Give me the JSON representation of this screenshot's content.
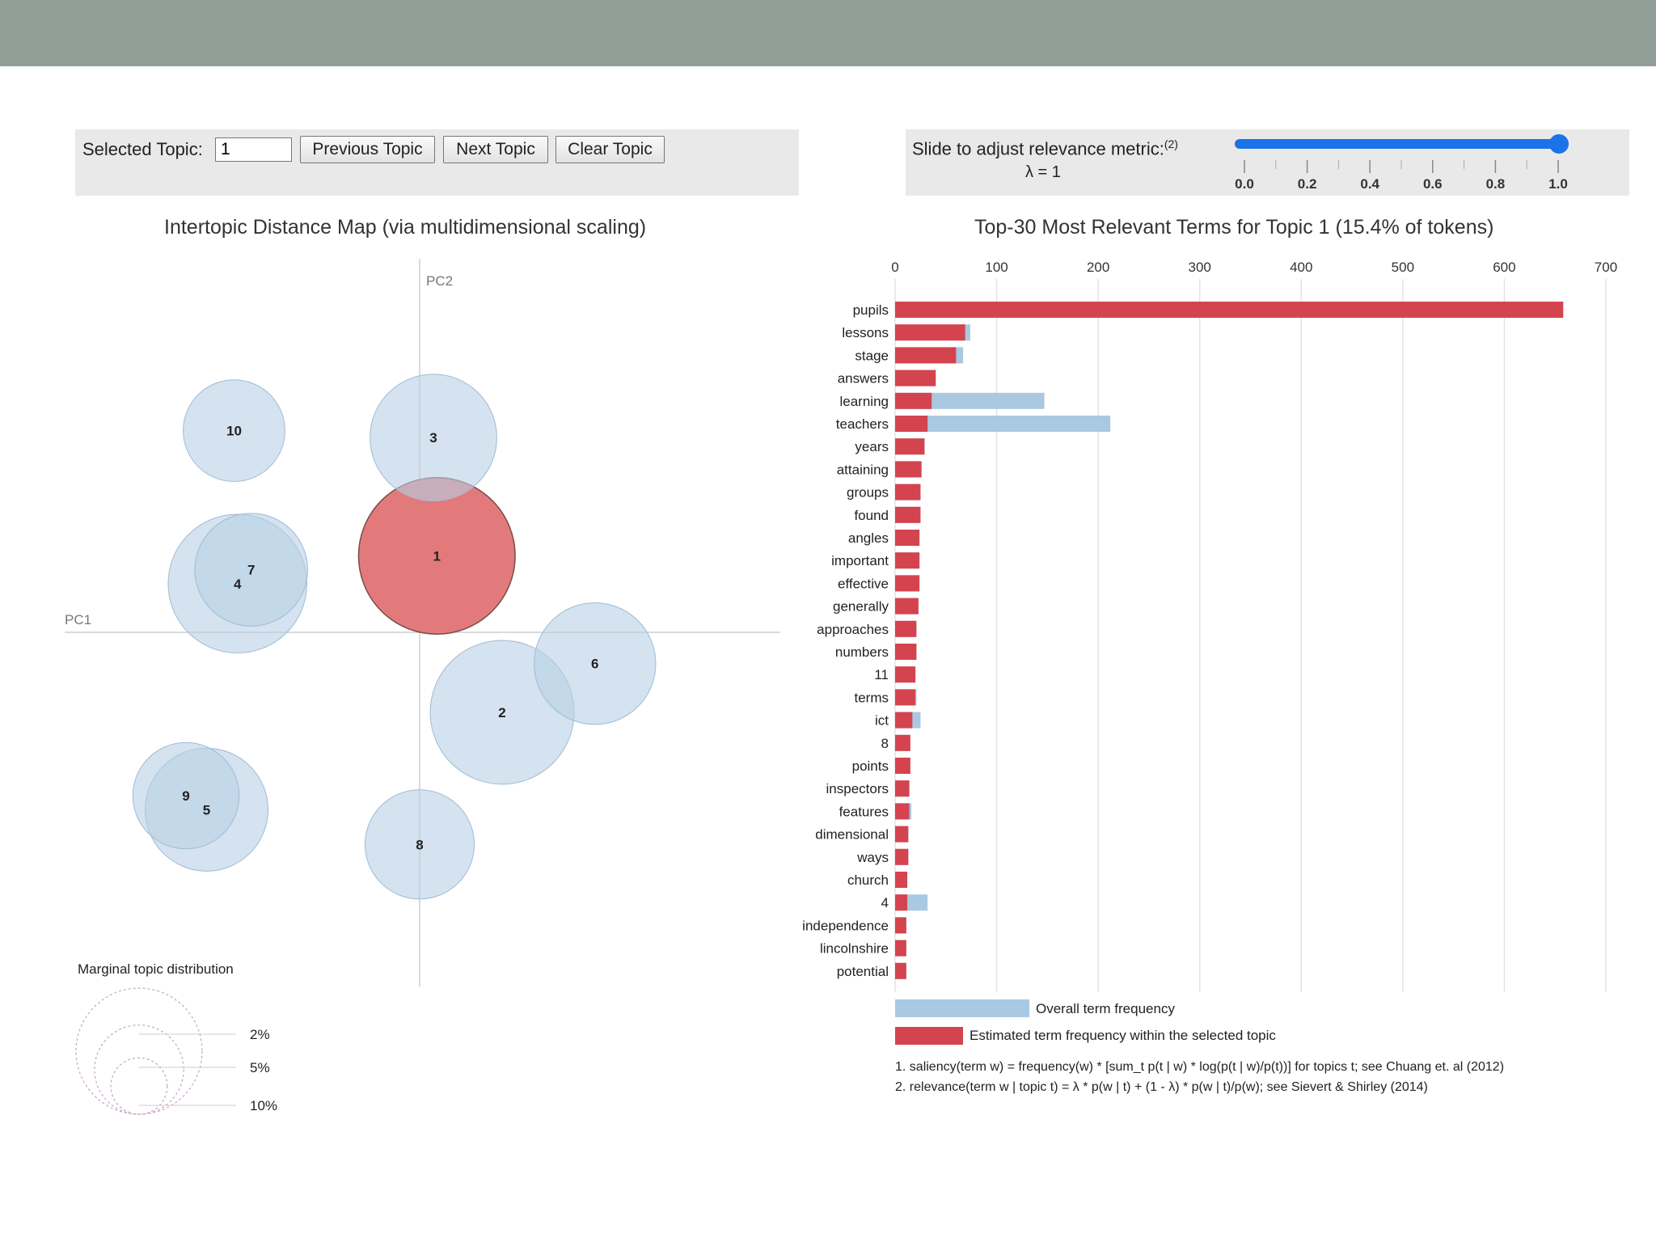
{
  "controls": {
    "selected_topic_label": "Selected Topic:",
    "selected_topic_value": "1",
    "previous_label": "Previous Topic",
    "next_label": "Next Topic",
    "clear_label": "Clear Topic",
    "slider_label": "Slide to adjust relevance metric:",
    "slider_footnote_ref": "(2)",
    "lambda_text": "λ = 1",
    "lambda_value": 1.0,
    "slider_ticks": [
      "0.0",
      "0.2",
      "0.4",
      "0.6",
      "0.8",
      "1.0"
    ]
  },
  "colors": {
    "topbar": "#919f98",
    "panel": "#e9e9e9",
    "bubble": "#b7d1e4",
    "selected_bubble": "#e27a7c",
    "bar_overall": "#a9c8e2",
    "bar_topic": "#d3444f",
    "slider": "#1a73e8"
  },
  "chart_data": [
    {
      "type": "scatter",
      "title": "Intertopic Distance Map (via multidimensional scaling)",
      "xlabel": "PC1",
      "ylabel": "PC2",
      "selected_topic": "1",
      "topics": [
        {
          "label": "1",
          "pc1": 0.05,
          "pc2": 0.22,
          "share": 15.4
        },
        {
          "label": "2",
          "pc1": 0.24,
          "pc2": -0.23,
          "share": 13.0
        },
        {
          "label": "3",
          "pc1": 0.04,
          "pc2": 0.56,
          "share": 10.1
        },
        {
          "label": "4",
          "pc1": -0.53,
          "pc2": 0.14,
          "share": 12.1
        },
        {
          "label": "5",
          "pc1": -0.62,
          "pc2": -0.51,
          "share": 9.5
        },
        {
          "label": "6",
          "pc1": 0.51,
          "pc2": -0.09,
          "share": 9.3
        },
        {
          "label": "7",
          "pc1": -0.49,
          "pc2": 0.18,
          "share": 8.0
        },
        {
          "label": "8",
          "pc1": 0.0,
          "pc2": -0.61,
          "share": 7.5
        },
        {
          "label": "9",
          "pc1": -0.68,
          "pc2": -0.47,
          "share": 7.1
        },
        {
          "label": "10",
          "pc1": -0.54,
          "pc2": 0.58,
          "share": 6.5
        }
      ],
      "legend": {
        "title": "Marginal topic distribution",
        "entries": [
          {
            "label": "2%",
            "share": 2
          },
          {
            "label": "5%",
            "share": 5
          },
          {
            "label": "10%",
            "share": 10
          }
        ]
      }
    },
    {
      "type": "bar",
      "orientation": "horizontal",
      "title": "Top-30 Most Relevant Terms for Topic 1 (15.4% of tokens)",
      "xticks": [
        "0",
        "100",
        "200",
        "300",
        "400",
        "500",
        "600",
        "700"
      ],
      "xlim": [
        0,
        700
      ],
      "terms": [
        "pupils",
        "lessons",
        "stage",
        "answers",
        "learning",
        "teachers",
        "years",
        "attaining",
        "groups",
        "found",
        "angles",
        "important",
        "effective",
        "generally",
        "approaches",
        "numbers",
        "11",
        "terms",
        "ict",
        "8",
        "points",
        "inspectors",
        "features",
        "dimensional",
        "ways",
        "church",
        "4",
        "independence",
        "lincolnshire",
        "potential"
      ],
      "series": [
        {
          "name": "Overall term frequency",
          "values": [
            658,
            74,
            67,
            40,
            147,
            212,
            29,
            26,
            25,
            25,
            24,
            24,
            24,
            23,
            21,
            21,
            20,
            21,
            25,
            15,
            15,
            14,
            16,
            13,
            13,
            12,
            32,
            11,
            11,
            11
          ]
        },
        {
          "name": "Estimated term frequency within the selected topic",
          "values": [
            658,
            69,
            60,
            40,
            36,
            32,
            29,
            26,
            25,
            25,
            24,
            24,
            24,
            23,
            21,
            21,
            20,
            20,
            17,
            15,
            15,
            14,
            14,
            13,
            13,
            12,
            12,
            11,
            11,
            11
          ]
        }
      ],
      "legend": {
        "overall": "Overall term frequency",
        "topic": "Estimated term frequency within the selected topic"
      },
      "footnotes": [
        "1. saliency(term w) = frequency(w) * [sum_t p(t | w) * log(p(t | w)/p(t))] for topics t; see Chuang et. al (2012)",
        "2. relevance(term w | topic t) = λ * p(w | t) + (1 - λ) * p(w | t)/p(w); see Sievert & Shirley (2014)"
      ]
    }
  ]
}
